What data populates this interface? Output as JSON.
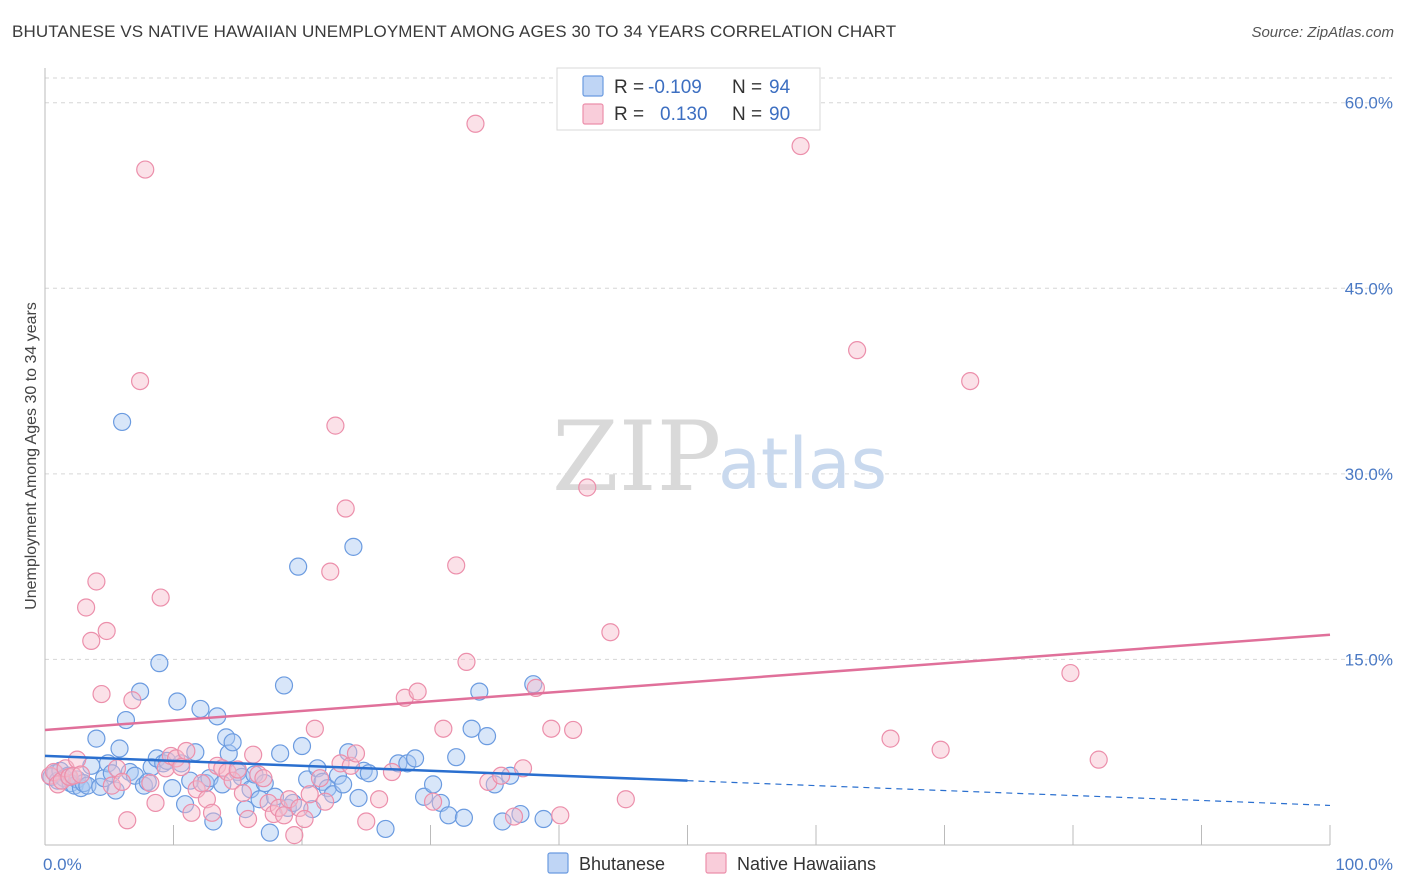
{
  "title": "BHUTANESE VS NATIVE HAWAIIAN UNEMPLOYMENT AMONG AGES 30 TO 34 YEARS CORRELATION CHART",
  "source": "Source: ZipAtlas.com",
  "watermark": {
    "zip": "ZIP",
    "atlas": "atlas"
  },
  "legend": {
    "r_label": "R =",
    "n_label": "N =",
    "rows": [
      {
        "r": "-0.109",
        "n": "94",
        "color": "#7aa6e8"
      },
      {
        "r": "0.130",
        "n": "90",
        "color": "#f2a0ba"
      }
    ]
  },
  "colors": {
    "blue_fill": "#a9c7f2",
    "blue_stroke": "#6b9be0",
    "blue_line": "#2a6fcf",
    "pink_fill": "#f7bccd",
    "pink_stroke": "#ec8fab",
    "pink_line": "#e0709a"
  },
  "chart_data": {
    "type": "scatter",
    "title": "BHUTANESE VS NATIVE HAWAIIAN UNEMPLOYMENT AMONG AGES 30 TO 34 YEARS CORRELATION CHART",
    "xlabel": "",
    "ylabel": "Unemployment Among Ages 30 to 34 years",
    "xlim": [
      0,
      100
    ],
    "ylim": [
      0,
      62
    ],
    "x_tick_labels": [
      "0.0%",
      "100.0%"
    ],
    "y_ticks": [
      15,
      30,
      45,
      60
    ],
    "y_tick_labels": [
      "15.0%",
      "30.0%",
      "45.0%",
      "60.0%"
    ],
    "grid": true,
    "legend_position": "top-center",
    "series": [
      {
        "name": "Bhutanese",
        "r": -0.109,
        "n": 94,
        "trend": {
          "x0": 0,
          "y0": 7.2,
          "x1": 50,
          "y1": 5.2,
          "dash_to_x": 100,
          "dash_to_y": 3.2
        },
        "points": [
          [
            0.5,
            5.5
          ],
          [
            0.8,
            5.8
          ],
          [
            1.0,
            5.2
          ],
          [
            1.2,
            6.0
          ],
          [
            1.5,
            5.4
          ],
          [
            1.8,
            5.6
          ],
          [
            2.0,
            5.0
          ],
          [
            2.3,
            4.8
          ],
          [
            2.5,
            5.3
          ],
          [
            2.8,
            4.6
          ],
          [
            3.0,
            5.0
          ],
          [
            3.3,
            4.8
          ],
          [
            3.6,
            6.4
          ],
          [
            4.0,
            8.6
          ],
          [
            4.3,
            4.7
          ],
          [
            4.6,
            5.4
          ],
          [
            4.9,
            6.6
          ],
          [
            5.2,
            5.8
          ],
          [
            5.5,
            4.4
          ],
          [
            5.8,
            7.8
          ],
          [
            6.0,
            34.2
          ],
          [
            6.3,
            10.1
          ],
          [
            6.6,
            5.9
          ],
          [
            7.0,
            5.6
          ],
          [
            7.4,
            12.4
          ],
          [
            7.7,
            4.8
          ],
          [
            8.0,
            5.1
          ],
          [
            8.3,
            6.3
          ],
          [
            8.7,
            7.0
          ],
          [
            8.9,
            14.7
          ],
          [
            9.2,
            6.6
          ],
          [
            9.5,
            6.8
          ],
          [
            9.9,
            4.6
          ],
          [
            10.3,
            11.6
          ],
          [
            10.6,
            6.6
          ],
          [
            10.9,
            3.3
          ],
          [
            11.3,
            5.2
          ],
          [
            11.7,
            7.5
          ],
          [
            12.1,
            11.0
          ],
          [
            12.5,
            5.0
          ],
          [
            12.8,
            5.4
          ],
          [
            13.1,
            1.9
          ],
          [
            13.4,
            10.4
          ],
          [
            13.8,
            4.9
          ],
          [
            14.1,
            8.7
          ],
          [
            14.3,
            7.4
          ],
          [
            14.6,
            8.3
          ],
          [
            15.0,
            5.9
          ],
          [
            15.3,
            5.5
          ],
          [
            15.6,
            2.9
          ],
          [
            16.0,
            4.5
          ],
          [
            16.3,
            5.7
          ],
          [
            16.7,
            3.7
          ],
          [
            17.1,
            5.0
          ],
          [
            17.5,
            1.0
          ],
          [
            17.9,
            3.9
          ],
          [
            18.3,
            7.4
          ],
          [
            18.6,
            12.9
          ],
          [
            18.9,
            3.0
          ],
          [
            19.3,
            3.4
          ],
          [
            19.7,
            22.5
          ],
          [
            20.0,
            8.0
          ],
          [
            20.4,
            5.3
          ],
          [
            20.8,
            2.9
          ],
          [
            21.2,
            6.2
          ],
          [
            21.6,
            5.1
          ],
          [
            22.0,
            4.6
          ],
          [
            22.4,
            4.1
          ],
          [
            22.8,
            5.6
          ],
          [
            23.2,
            4.9
          ],
          [
            23.6,
            7.5
          ],
          [
            24.0,
            24.1
          ],
          [
            24.4,
            3.8
          ],
          [
            24.8,
            6.0
          ],
          [
            25.2,
            5.8
          ],
          [
            26.5,
            1.3
          ],
          [
            27.5,
            6.6
          ],
          [
            28.2,
            6.6
          ],
          [
            28.8,
            7.0
          ],
          [
            29.5,
            3.9
          ],
          [
            30.2,
            4.9
          ],
          [
            30.8,
            3.4
          ],
          [
            31.4,
            2.4
          ],
          [
            32.0,
            7.1
          ],
          [
            32.6,
            2.2
          ],
          [
            33.2,
            9.4
          ],
          [
            33.8,
            12.4
          ],
          [
            34.4,
            8.8
          ],
          [
            35.0,
            4.9
          ],
          [
            35.6,
            1.9
          ],
          [
            36.2,
            5.6
          ],
          [
            37.0,
            2.5
          ],
          [
            38.0,
            13.0
          ],
          [
            38.8,
            2.1
          ]
        ]
      },
      {
        "name": "Native Hawaiians",
        "r": 0.13,
        "n": 90,
        "trend": {
          "x0": 0,
          "y0": 9.3,
          "x1": 100,
          "y1": 17.0
        },
        "points": [
          [
            0.4,
            5.6
          ],
          [
            0.7,
            5.9
          ],
          [
            1.0,
            4.9
          ],
          [
            1.3,
            5.2
          ],
          [
            1.6,
            6.2
          ],
          [
            1.9,
            5.5
          ],
          [
            2.2,
            5.6
          ],
          [
            2.5,
            6.9
          ],
          [
            2.8,
            5.7
          ],
          [
            3.2,
            19.2
          ],
          [
            3.6,
            16.5
          ],
          [
            4.0,
            21.3
          ],
          [
            4.4,
            12.2
          ],
          [
            4.8,
            17.3
          ],
          [
            5.2,
            4.8
          ],
          [
            5.6,
            6.2
          ],
          [
            6.0,
            5.1
          ],
          [
            6.4,
            2.0
          ],
          [
            6.8,
            11.7
          ],
          [
            7.4,
            37.5
          ],
          [
            7.8,
            54.6
          ],
          [
            8.2,
            5.0
          ],
          [
            8.6,
            3.4
          ],
          [
            9.0,
            20.0
          ],
          [
            9.4,
            6.2
          ],
          [
            9.8,
            7.2
          ],
          [
            10.2,
            7.0
          ],
          [
            10.6,
            6.3
          ],
          [
            11.0,
            7.6
          ],
          [
            11.4,
            2.6
          ],
          [
            11.8,
            4.5
          ],
          [
            12.2,
            5.0
          ],
          [
            12.6,
            3.7
          ],
          [
            13.0,
            2.6
          ],
          [
            13.4,
            6.4
          ],
          [
            13.8,
            6.2
          ],
          [
            14.2,
            5.9
          ],
          [
            14.6,
            5.2
          ],
          [
            15.0,
            6.1
          ],
          [
            15.4,
            4.2
          ],
          [
            15.8,
            2.1
          ],
          [
            16.2,
            7.3
          ],
          [
            16.6,
            5.7
          ],
          [
            17.0,
            5.4
          ],
          [
            17.4,
            3.4
          ],
          [
            17.8,
            2.5
          ],
          [
            18.2,
            3.0
          ],
          [
            18.6,
            2.4
          ],
          [
            19.0,
            3.7
          ],
          [
            19.4,
            0.8
          ],
          [
            19.8,
            3.0
          ],
          [
            20.2,
            2.1
          ],
          [
            20.6,
            4.1
          ],
          [
            21.0,
            9.4
          ],
          [
            21.4,
            5.4
          ],
          [
            21.8,
            3.5
          ],
          [
            22.2,
            22.1
          ],
          [
            22.6,
            33.9
          ],
          [
            23.0,
            6.6
          ],
          [
            23.4,
            27.2
          ],
          [
            23.8,
            6.4
          ],
          [
            24.2,
            7.4
          ],
          [
            25.0,
            1.9
          ],
          [
            26.0,
            3.7
          ],
          [
            27.0,
            5.9
          ],
          [
            28.0,
            11.9
          ],
          [
            29.0,
            12.4
          ],
          [
            30.2,
            3.5
          ],
          [
            31.0,
            9.4
          ],
          [
            32.0,
            22.6
          ],
          [
            32.8,
            14.8
          ],
          [
            33.5,
            58.3
          ],
          [
            34.5,
            5.1
          ],
          [
            35.5,
            5.6
          ],
          [
            36.5,
            2.3
          ],
          [
            37.2,
            6.2
          ],
          [
            38.2,
            12.7
          ],
          [
            39.4,
            9.4
          ],
          [
            40.1,
            2.4
          ],
          [
            41.1,
            9.3
          ],
          [
            42.2,
            28.9
          ],
          [
            44.0,
            17.2
          ],
          [
            45.2,
            3.7
          ],
          [
            58.8,
            56.5
          ],
          [
            63.2,
            40.0
          ],
          [
            65.8,
            8.6
          ],
          [
            69.7,
            7.7
          ],
          [
            72.0,
            37.5
          ],
          [
            79.8,
            13.9
          ],
          [
            82.0,
            6.9
          ]
        ]
      }
    ]
  },
  "bottom_legend": [
    {
      "label": "Bhutanese",
      "color": "#a9c7f2"
    },
    {
      "label": "Native Hawaiians",
      "color": "#f7bccd"
    }
  ]
}
